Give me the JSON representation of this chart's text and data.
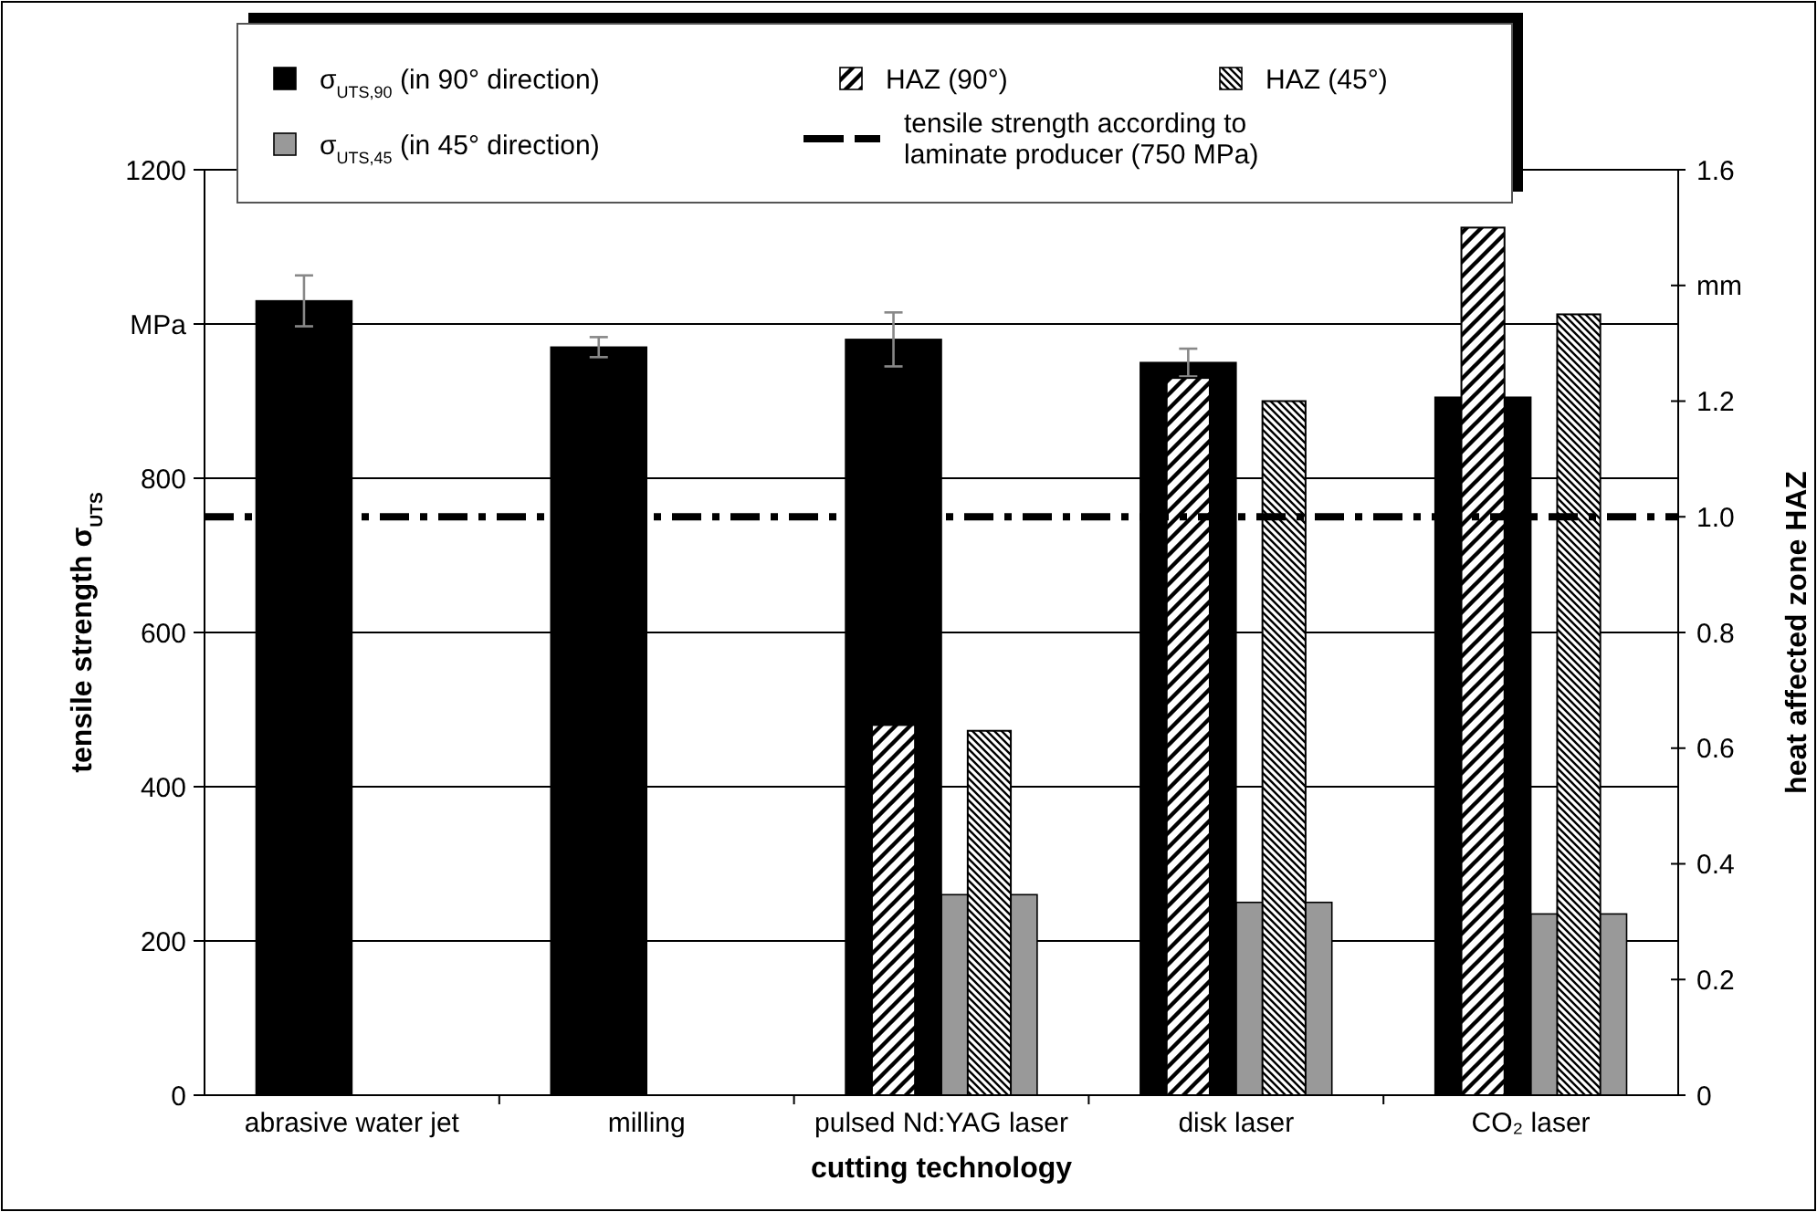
{
  "chart_data": {
    "type": "bar",
    "categories": [
      "abrasive water jet",
      "milling",
      "pulsed Nd:YAG laser",
      "disk laser",
      "CO₂ laser"
    ],
    "series": [
      {
        "name": "σ$_{UTS,90}$ (in 90° direction)",
        "color": "#000000",
        "values": [
          1030,
          970,
          980,
          950,
          905
        ],
        "errors": [
          33,
          13,
          35,
          18,
          null
        ]
      },
      {
        "name": "σ$_{UTS,45}$ (in 45° direction)",
        "color": "#999999",
        "values": [
          null,
          null,
          260,
          250,
          235
        ]
      },
      {
        "name": "HAZ (90°)",
        "color": "#000000",
        "axis": "y2",
        "values": [
          null,
          null,
          0.64,
          1.24,
          1.5
        ]
      },
      {
        "name": "HAZ (45°)",
        "color": "#000000",
        "axis": "y2",
        "values": [
          null,
          null,
          0.63,
          1.2,
          1.35
        ]
      }
    ],
    "xlabel": "cutting technology",
    "ylabel": "tensile strength σ$_{UTS}$",
    "y2label": "heat affected zone HAZ",
    "ylim": [
      0,
      1200
    ],
    "yticks": [
      0,
      200,
      400,
      600,
      800,
      {
        "value": 1000,
        "label": "MPa"
      },
      1200
    ],
    "y2lim": [
      0,
      1.6
    ],
    "y2ticks": [
      0,
      0.2,
      0.4,
      0.6,
      0.8,
      {
        "value": 1,
        "label": "1.0"
      },
      1.2,
      {
        "value": 1.4,
        "label": "mm"
      },
      1.6
    ],
    "ref_lines": [
      {
        "axis": "y",
        "value": 750,
        "label": "tensile strength according to laminate producer (750 MPa)",
        "color": "#000000",
        "line_style": "dashed"
      }
    ],
    "grid": "y",
    "legend": "top"
  }
}
